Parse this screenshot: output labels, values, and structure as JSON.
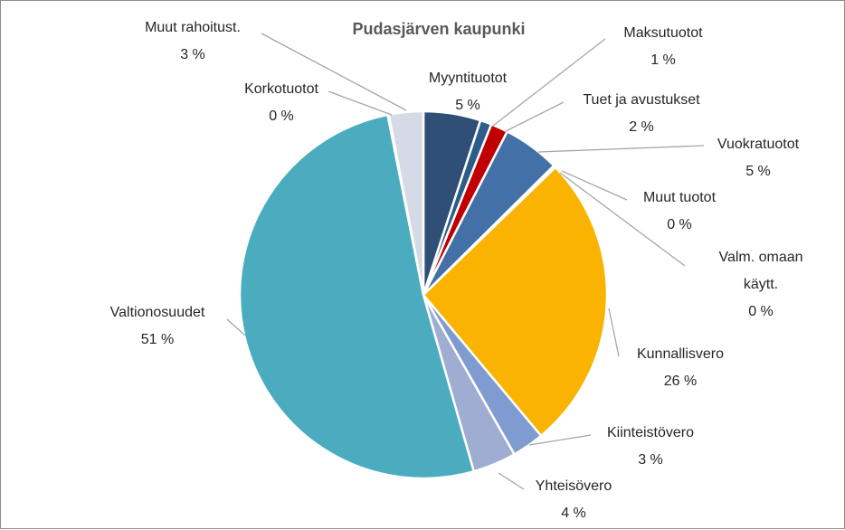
{
  "chart_data": {
    "type": "pie",
    "title": "Pudasjärven kaupunki",
    "slices": [
      {
        "name": "Myyntituotot",
        "value": 5,
        "label": "5 %",
        "color": "#2f4f77"
      },
      {
        "name": "Maksutuotot",
        "value": 1,
        "label": "1 %",
        "color": "#2b5c8a"
      },
      {
        "name": "Tuet ja avustukset",
        "value": 1.5,
        "label": "2 %",
        "color": "#c00000"
      },
      {
        "name": "Vuokratuotot",
        "value": 5,
        "label": "5 %",
        "color": "#4470a8"
      },
      {
        "name": "Muut tuotot",
        "value": 0.15,
        "label": "0 %",
        "color": "#7f7f7f"
      },
      {
        "name": "Valm. omaan käytt.",
        "value": 0.05,
        "label": "0 %",
        "color": "#a5a5a5"
      },
      {
        "name": "Kunnallisvero",
        "value": 26,
        "label": "26 %",
        "color": "#f9b300"
      },
      {
        "name": "Kiinteistövero",
        "value": 2.8,
        "label": "3 %",
        "color": "#7f9bcf"
      },
      {
        "name": "Yhteisövero",
        "value": 3.8,
        "label": "4 %",
        "color": "#9eadd1"
      },
      {
        "name": "Valtionosuudet",
        "value": 51,
        "label": "51 %",
        "color": "#4bacc0"
      },
      {
        "name": "Korkotuotot",
        "value": 0.1,
        "label": "0 %",
        "color": "#c9c9c9"
      },
      {
        "name": "Muut rahoitust.",
        "value": 3,
        "label": "3 %",
        "color": "#d6dae6"
      }
    ]
  }
}
